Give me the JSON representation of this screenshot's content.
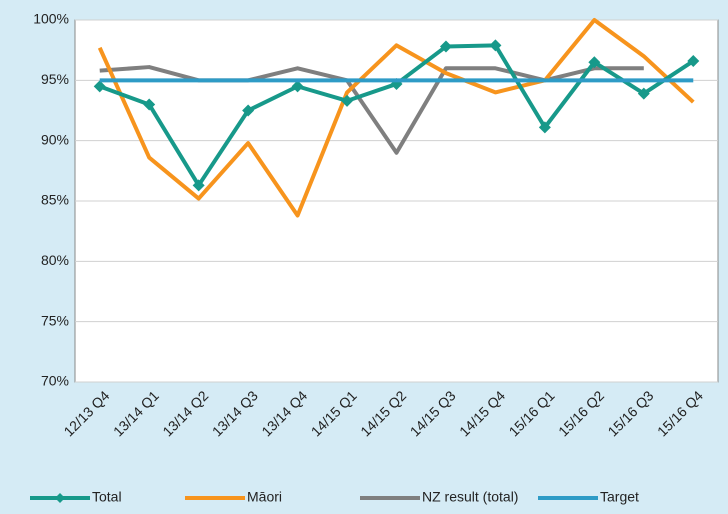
{
  "chart_data": {
    "type": "line",
    "categories": [
      "12/13 Q4",
      "13/14 Q1",
      "13/14 Q2",
      "13/14 Q3",
      "13/14 Q4",
      "14/15 Q1",
      "14/15 Q2",
      "14/15 Q3",
      "14/15 Q4",
      "15/16 Q1",
      "15/16 Q2",
      "15/16 Q3",
      "15/16 Q4"
    ],
    "series": [
      {
        "name": "Total",
        "color": "#17998a",
        "marker": "diamond",
        "values": [
          94.5,
          93.0,
          86.3,
          92.5,
          94.5,
          93.3,
          94.7,
          97.8,
          97.9,
          91.1,
          96.5,
          93.9,
          96.6
        ]
      },
      {
        "name": "Māori",
        "color": "#f7941d",
        "values": [
          97.7,
          88.6,
          85.2,
          89.8,
          83.8,
          94.0,
          97.9,
          95.6,
          94.0,
          95.0,
          100.0,
          97.0,
          93.2
        ]
      },
      {
        "name": "NZ result (total)",
        "color": "#7f7f7f",
        "values": [
          95.8,
          96.1,
          95.0,
          95.0,
          96.0,
          95.0,
          89.0,
          96.0,
          96.0,
          95.0,
          96.0,
          96.0,
          null
        ]
      },
      {
        "name": "Target",
        "color": "#2e9bc6",
        "values": [
          95,
          95,
          95,
          95,
          95,
          95,
          95,
          95,
          95,
          95,
          95,
          95,
          95
        ]
      }
    ],
    "ylim": [
      70,
      100
    ],
    "yticks": [
      {
        "value": 70,
        "label": "70%"
      },
      {
        "value": 75,
        "label": "75%"
      },
      {
        "value": 80,
        "label": "80%"
      },
      {
        "value": 85,
        "label": "85%"
      },
      {
        "value": 90,
        "label": "90%"
      },
      {
        "value": 95,
        "label": "95%"
      },
      {
        "value": 100,
        "label": "100%"
      }
    ],
    "grid": true,
    "legend": "bottom"
  }
}
